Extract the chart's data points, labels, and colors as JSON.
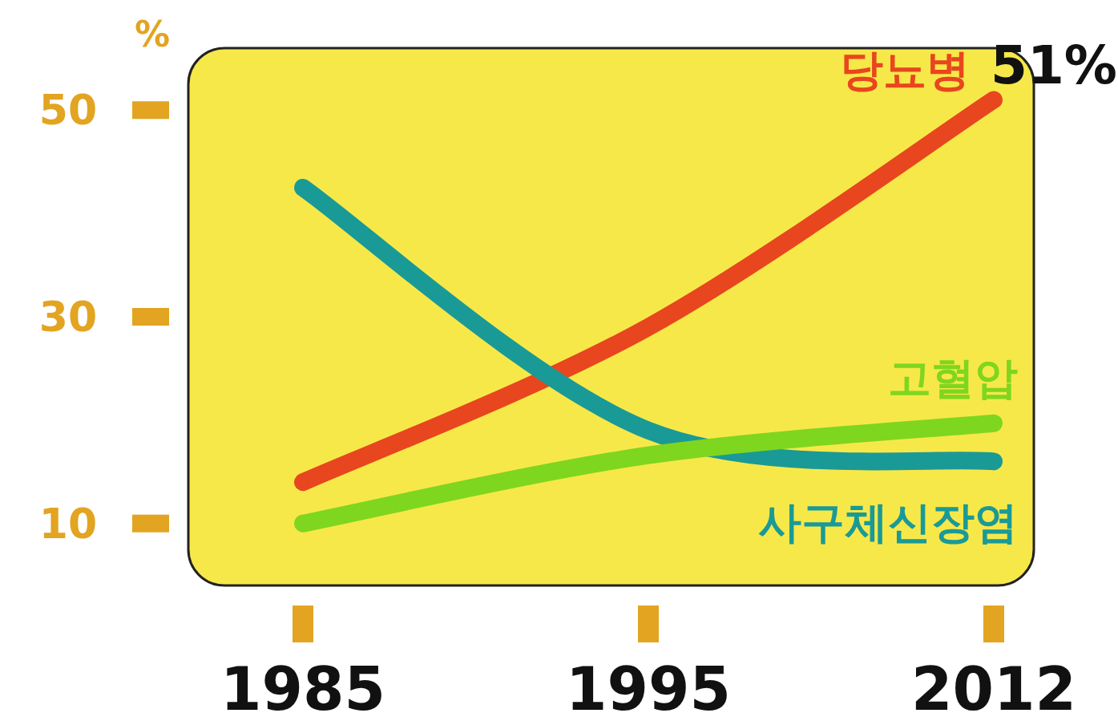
{
  "chart_data": {
    "type": "line",
    "ylabel": "%",
    "categories": [
      "1985",
      "1995",
      "2012"
    ],
    "series": [
      {
        "name": "당뇨병",
        "color": "#e8461e",
        "values": [
          14,
          29,
          51
        ]
      },
      {
        "name": "사구체신장염",
        "color": "#1a9a96",
        "values": [
          42.5,
          19,
          16
        ]
      },
      {
        "name": "고혈압",
        "color": "#7fd61e",
        "values": [
          10,
          16.6,
          19.7
        ]
      }
    ],
    "ylim": [
      4,
      56
    ],
    "yticks": [
      10,
      30,
      50
    ],
    "annotations": [
      {
        "text": "51%",
        "x": "2012",
        "y": 51
      }
    ]
  }
}
